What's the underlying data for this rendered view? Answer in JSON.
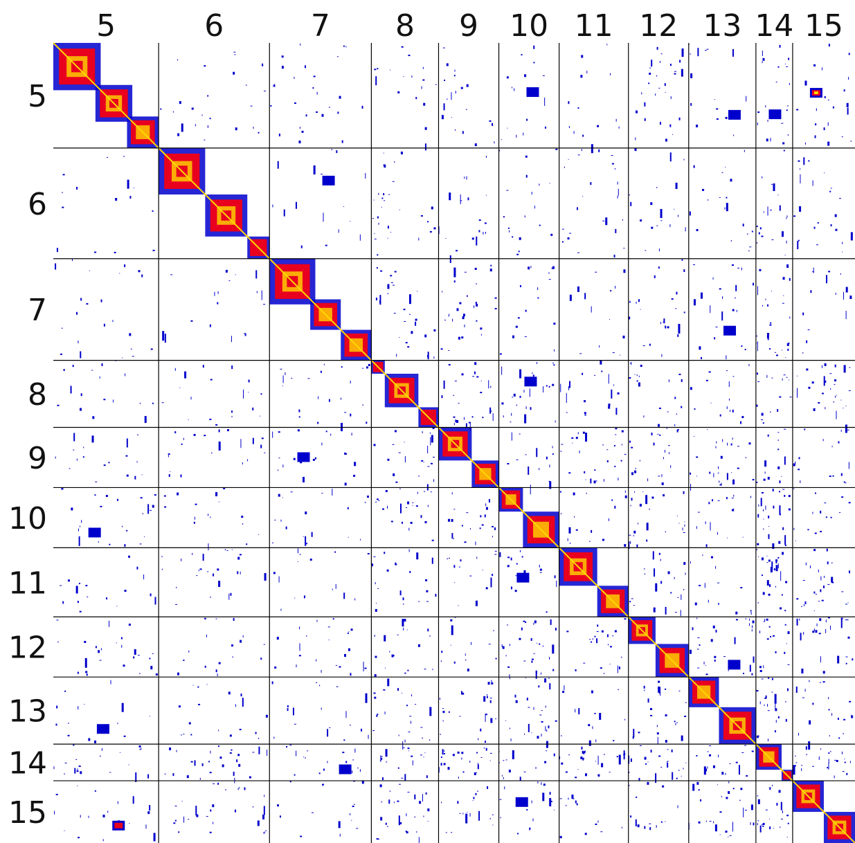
{
  "chart_data": {
    "type": "heatmap",
    "title": "",
    "xlabel": "",
    "ylabel": "",
    "categories": [
      "5",
      "6",
      "7",
      "8",
      "9",
      "10",
      "11",
      "12",
      "13",
      "14",
      "15"
    ],
    "block_sizes": [
      152,
      160,
      147,
      97,
      87,
      87,
      100,
      87,
      97,
      53,
      90
    ],
    "grid": true,
    "colormap": [
      "#0000cc",
      "#e8001e",
      "#ffd700"
    ],
    "diagonal_domains": [
      [
        {
          "start": 0.0,
          "end": 0.45,
          "level": 3
        },
        {
          "start": 0.4,
          "end": 0.75,
          "level": 3
        },
        {
          "start": 0.7,
          "end": 1.0,
          "level": 2
        }
      ],
      [
        {
          "start": 0.0,
          "end": 0.42,
          "level": 3
        },
        {
          "start": 0.42,
          "end": 0.8,
          "level": 3
        },
        {
          "start": 0.8,
          "end": 1.0,
          "level": 1
        }
      ],
      [
        {
          "start": 0.0,
          "end": 0.45,
          "level": 3
        },
        {
          "start": 0.4,
          "end": 0.7,
          "level": 2
        },
        {
          "start": 0.7,
          "end": 1.0,
          "level": 2
        }
      ],
      [
        {
          "start": 0.0,
          "end": 0.2,
          "level": 1
        },
        {
          "start": 0.2,
          "end": 0.7,
          "level": 3
        },
        {
          "start": 0.7,
          "end": 1.0,
          "level": 1
        }
      ],
      [
        {
          "start": 0.0,
          "end": 0.55,
          "level": 3
        },
        {
          "start": 0.55,
          "end": 1.0,
          "level": 2
        }
      ],
      [
        {
          "start": 0.0,
          "end": 0.4,
          "level": 2
        },
        {
          "start": 0.4,
          "end": 1.0,
          "level": 2
        }
      ],
      [
        {
          "start": 0.0,
          "end": 0.55,
          "level": 3
        },
        {
          "start": 0.55,
          "end": 1.0,
          "level": 2
        }
      ],
      [
        {
          "start": 0.0,
          "end": 0.45,
          "level": 3
        },
        {
          "start": 0.45,
          "end": 1.0,
          "level": 2
        }
      ],
      [
        {
          "start": 0.0,
          "end": 0.45,
          "level": 2
        },
        {
          "start": 0.45,
          "end": 1.0,
          "level": 3
        }
      ],
      [
        {
          "start": 0.0,
          "end": 0.7,
          "level": 2
        },
        {
          "start": 0.7,
          "end": 1.0,
          "level": 1
        }
      ],
      [
        {
          "start": 0.0,
          "end": 0.5,
          "level": 3
        },
        {
          "start": 0.5,
          "end": 1.0,
          "level": 3
        }
      ]
    ],
    "off_diagonal_contacts": [
      {
        "row": "5",
        "col": "15",
        "level": 3
      },
      {
        "row": "5",
        "col": "10",
        "level": 1
      },
      {
        "row": "5",
        "col": "13",
        "level": 1
      },
      {
        "row": "5",
        "col": "14",
        "level": 1
      },
      {
        "row": "6",
        "col": "7",
        "level": 1
      },
      {
        "row": "7",
        "col": "13",
        "level": 1
      },
      {
        "row": "8",
        "col": "10",
        "level": 1
      },
      {
        "row": "9",
        "col": "7",
        "level": 1
      },
      {
        "row": "10",
        "col": "5",
        "level": 1
      },
      {
        "row": "11",
        "col": "10",
        "level": 1
      },
      {
        "row": "12",
        "col": "13",
        "level": 1
      },
      {
        "row": "13",
        "col": "5",
        "level": 1
      },
      {
        "row": "14",
        "col": "7",
        "level": 1
      },
      {
        "row": "15",
        "col": "5",
        "level": 2
      },
      {
        "row": "15",
        "col": "10",
        "level": 1
      }
    ]
  }
}
